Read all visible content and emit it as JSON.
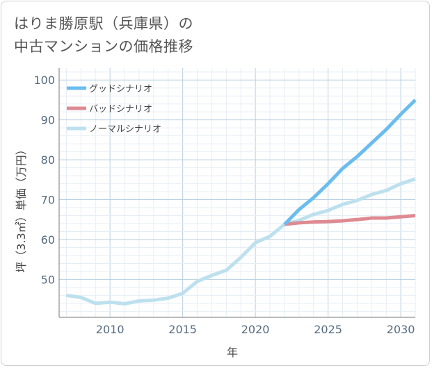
{
  "title_lines": [
    "はりま勝原駅（兵庫県）の",
    "中古マンションの価格推移"
  ],
  "chart_data": {
    "type": "line",
    "xlabel": "年",
    "ylabel": "坪（3.3㎡）単価（万円）",
    "xlim": [
      2006.5,
      2031
    ],
    "ylim": [
      40.5,
      103
    ],
    "x_ticks": [
      "2010",
      "2015",
      "2020",
      "2025",
      "2030"
    ],
    "y_ticks": [
      "50",
      "60",
      "70",
      "80",
      "90",
      "100"
    ],
    "grid": true,
    "legend_position": "top-left",
    "series": [
      {
        "name": "ノーマルシナリオ",
        "color": "#bde0ee",
        "x": [
          2007,
          2008,
          2009,
          2010,
          2011,
          2012,
          2013,
          2014,
          2015,
          2016,
          2017,
          2018,
          2019,
          2020,
          2021,
          2022,
          2023,
          2024,
          2025,
          2026,
          2027,
          2028,
          2029,
          2030,
          2031
        ],
        "values": [
          46.0,
          45.5,
          44.0,
          44.3,
          43.9,
          44.6,
          44.8,
          45.3,
          46.5,
          49.5,
          51.0,
          52.3,
          55.5,
          59.2,
          60.8,
          63.8,
          64.8,
          66.3,
          67.3,
          68.8,
          69.8,
          71.3,
          72.3,
          74.0,
          75.2
        ]
      },
      {
        "name": "バッドシナリオ",
        "color": "#de8a92",
        "x": [
          2022,
          2023,
          2024,
          2025,
          2026,
          2027,
          2028,
          2029,
          2030,
          2031
        ],
        "values": [
          63.8,
          64.2,
          64.4,
          64.5,
          64.7,
          65.0,
          65.4,
          65.4,
          65.7,
          66.0
        ]
      },
      {
        "name": "グッドシナリオ",
        "color": "#6bbcef",
        "x": [
          2022,
          2023,
          2024,
          2025,
          2026,
          2027,
          2028,
          2029,
          2030,
          2031
        ],
        "values": [
          63.8,
          67.5,
          70.5,
          74.0,
          77.8,
          80.8,
          84.2,
          87.6,
          91.4,
          95.0
        ]
      }
    ],
    "legend": [
      "グッドシナリオ",
      "バッドシナリオ",
      "ノーマルシナリオ"
    ]
  }
}
